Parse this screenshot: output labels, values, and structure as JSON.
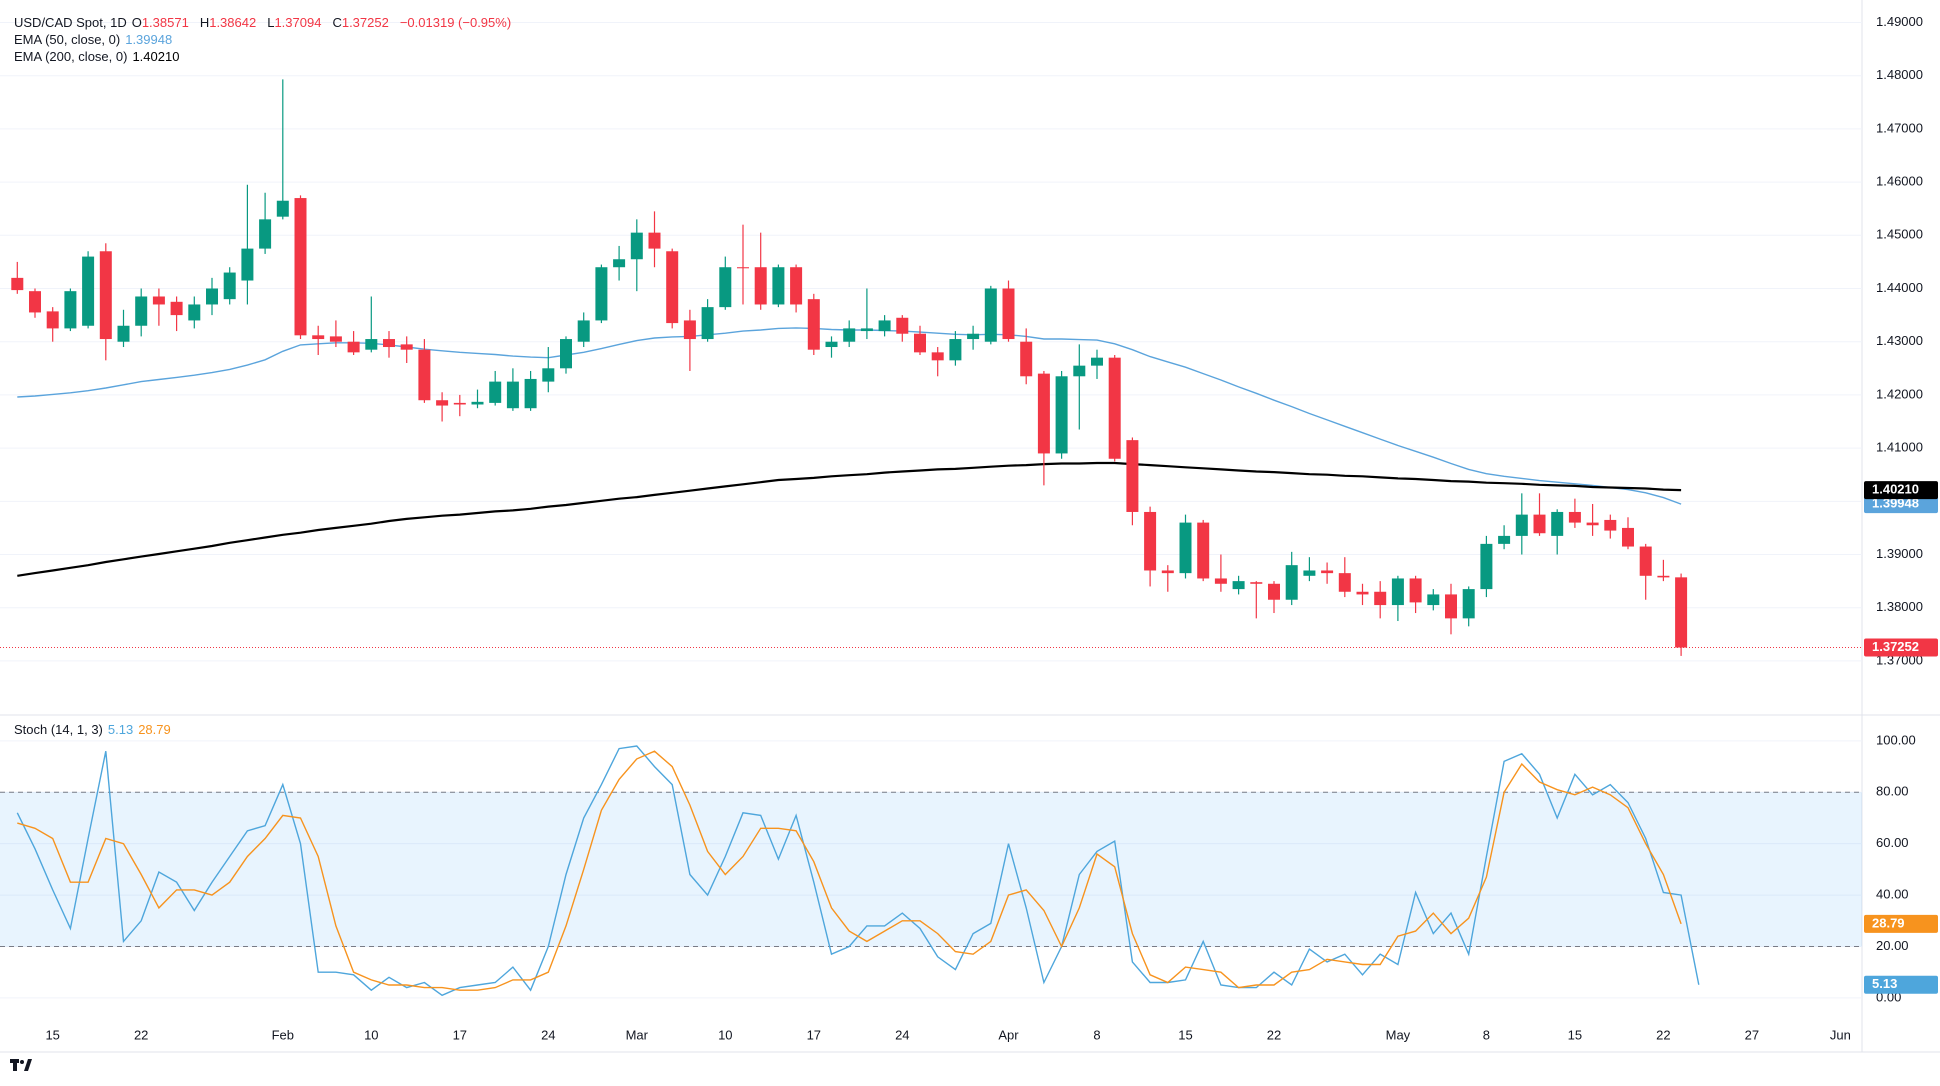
{
  "chart_data": {
    "type": "candlestick",
    "header": {
      "symbol": "USD/CAD Spot, 1D",
      "fields": [
        {
          "label": "O",
          "value": 1.38571
        },
        {
          "label": "H",
          "value": 1.38642
        },
        {
          "label": "L",
          "value": 1.37094
        },
        {
          "label": "C",
          "value": 1.37252
        }
      ],
      "change": "−0.01319 (−0.95%)"
    },
    "categories": [
      null,
      null,
      "15",
      null,
      null,
      null,
      null,
      "22",
      null,
      null,
      null,
      null,
      null,
      null,
      null,
      "Feb",
      null,
      null,
      null,
      null,
      "10",
      null,
      null,
      null,
      null,
      "17",
      null,
      null,
      null,
      null,
      "24",
      null,
      null,
      null,
      null,
      "Mar",
      null,
      null,
      null,
      null,
      "10",
      null,
      null,
      null,
      null,
      "17",
      null,
      null,
      null,
      null,
      "24",
      null,
      null,
      null,
      null,
      null,
      "Apr",
      null,
      null,
      null,
      null,
      "8",
      null,
      null,
      null,
      null,
      "15",
      null,
      null,
      null,
      null,
      "22",
      null,
      null,
      null,
      null,
      null,
      null,
      "May",
      null,
      null,
      null,
      null,
      "8",
      null,
      null,
      null,
      null,
      "15",
      null,
      null,
      null,
      null,
      "22",
      null,
      null,
      null,
      null,
      "27",
      null,
      null,
      null,
      null,
      "Jun"
    ],
    "open": [
      1.442,
      1.4395,
      1.4357,
      1.4325,
      1.433,
      1.447,
      1.43,
      1.433,
      1.4385,
      1.4375,
      1.434,
      1.437,
      1.438,
      1.4415,
      1.4475,
      1.4535,
      1.457,
      1.4312,
      1.431,
      1.43,
      1.4285,
      1.4305,
      1.4295,
      1.4285,
      1.419,
      1.4185,
      1.4182,
      1.4185,
      1.4175,
      1.4175,
      1.4225,
      1.425,
      1.43,
      1.434,
      1.444,
      1.4455,
      1.4505,
      1.447,
      1.434,
      1.4305,
      1.4365,
      1.444,
      1.444,
      1.437,
      1.444,
      1.438,
      1.429,
      1.43,
      1.432,
      1.432,
      1.4345,
      1.4315,
      1.428,
      1.4265,
      1.4305,
      1.43,
      1.44,
      1.43,
      1.424,
      1.409,
      1.4235,
      1.4255,
      1.427,
      1.4115,
      1.398,
      1.387,
      1.3865,
      1.396,
      1.3855,
      1.3835,
      1.3848,
      1.3845,
      1.3815,
      1.386,
      1.387,
      1.3865,
      1.383,
      1.383,
      1.3805,
      1.3855,
      1.3805,
      1.3825,
      1.378,
      1.3835,
      1.392,
      1.3935,
      1.3975,
      1.3935,
      1.398,
      1.396,
      1.3965,
      1.395,
      1.3915,
      1.386,
      1.38571,
      null,
      null,
      null,
      null,
      null,
      null,
      null,
      null,
      null
    ],
    "high": [
      1.445,
      1.44,
      1.4365,
      1.44,
      1.447,
      1.4485,
      1.436,
      1.44,
      1.44,
      1.4385,
      1.4385,
      1.442,
      1.444,
      1.4595,
      1.458,
      1.4793,
      1.4575,
      1.433,
      1.434,
      1.432,
      1.4385,
      1.432,
      1.431,
      1.4305,
      1.4205,
      1.42,
      1.421,
      1.4245,
      1.425,
      1.4245,
      1.429,
      1.431,
      1.4355,
      1.4445,
      1.448,
      1.453,
      1.4545,
      1.4475,
      1.436,
      1.438,
      1.446,
      1.452,
      1.4505,
      1.4445,
      1.4445,
      1.439,
      1.431,
      1.434,
      1.44,
      1.435,
      1.435,
      1.433,
      1.429,
      1.432,
      1.433,
      1.4405,
      1.4415,
      1.4325,
      1.4245,
      1.4245,
      1.4295,
      1.4285,
      1.4275,
      1.412,
      1.399,
      1.388,
      1.3975,
      1.3965,
      1.39,
      1.386,
      1.385,
      1.385,
      1.3905,
      1.3895,
      1.3885,
      1.3895,
      1.3845,
      1.385,
      1.386,
      1.386,
      1.3835,
      1.3845,
      1.384,
      1.3935,
      1.3955,
      1.4015,
      1.4015,
      1.3985,
      1.4005,
      1.3995,
      1.3975,
      1.397,
      1.392,
      1.389,
      1.38642,
      null,
      null,
      null,
      null,
      null,
      null,
      null,
      null,
      null
    ],
    "low": [
      1.439,
      1.4345,
      1.43,
      1.432,
      1.4325,
      1.4265,
      1.429,
      1.431,
      1.433,
      1.432,
      1.4325,
      1.435,
      1.437,
      1.437,
      1.4465,
      1.453,
      1.4305,
      1.4275,
      1.429,
      1.4275,
      1.428,
      1.427,
      1.426,
      1.4185,
      1.415,
      1.416,
      1.4175,
      1.418,
      1.417,
      1.417,
      1.4205,
      1.424,
      1.429,
      1.4335,
      1.4415,
      1.4395,
      1.444,
      1.4325,
      1.4245,
      1.43,
      1.436,
      1.437,
      1.436,
      1.4365,
      1.4355,
      1.4275,
      1.427,
      1.429,
      1.4305,
      1.431,
      1.43,
      1.4275,
      1.4235,
      1.4255,
      1.4285,
      1.4295,
      1.43,
      1.422,
      1.403,
      1.408,
      1.4135,
      1.423,
      1.4075,
      1.3955,
      1.384,
      1.383,
      1.3855,
      1.385,
      1.383,
      1.3825,
      1.378,
      1.379,
      1.3805,
      1.385,
      1.3845,
      1.382,
      1.3805,
      1.378,
      1.3775,
      1.379,
      1.3795,
      1.375,
      1.3765,
      1.382,
      1.391,
      1.39,
      1.3935,
      1.39,
      1.395,
      1.3935,
      1.393,
      1.391,
      1.3815,
      1.385,
      1.37094,
      null,
      null,
      null,
      null,
      null,
      null,
      null,
      null,
      null
    ],
    "close": [
      1.4397,
      1.4355,
      1.4325,
      1.4395,
      1.446,
      1.4305,
      1.433,
      1.4385,
      1.437,
      1.435,
      1.437,
      1.44,
      1.443,
      1.4475,
      1.453,
      1.4565,
      1.4312,
      1.4305,
      1.43,
      1.428,
      1.4305,
      1.429,
      1.4285,
      1.419,
      1.418,
      1.4182,
      1.4187,
      1.4225,
      1.4225,
      1.423,
      1.425,
      1.4305,
      1.434,
      1.444,
      1.4455,
      1.4505,
      1.4475,
      1.4335,
      1.4305,
      1.4365,
      1.444,
      1.4438,
      1.437,
      1.444,
      1.437,
      1.4285,
      1.43,
      1.4325,
      1.4325,
      1.434,
      1.4315,
      1.428,
      1.4265,
      1.4305,
      1.4315,
      1.44,
      1.4305,
      1.4235,
      1.409,
      1.4235,
      1.4255,
      1.427,
      1.408,
      1.398,
      1.387,
      1.3865,
      1.396,
      1.3855,
      1.3845,
      1.385,
      1.3845,
      1.3815,
      1.388,
      1.387,
      1.3865,
      1.383,
      1.3825,
      1.3805,
      1.3855,
      1.381,
      1.3825,
      1.378,
      1.3835,
      1.392,
      1.3935,
      1.3975,
      1.394,
      1.398,
      1.396,
      1.3955,
      1.3945,
      1.3915,
      1.386,
      1.3857,
      1.37252,
      null,
      null,
      null,
      null,
      null,
      null,
      null,
      null,
      null
    ],
    "up_color": "#089981",
    "down_color": "#f23645",
    "overlays": [
      {
        "name": "EMA (50, close, 0)",
        "color": "#5ba4dc",
        "last_label": "1.39948",
        "values": [
          1.4196,
          1.4198,
          1.4201,
          1.4204,
          1.4208,
          1.4213,
          1.4219,
          1.4225,
          1.4229,
          1.4233,
          1.4237,
          1.4242,
          1.4248,
          1.4256,
          1.4266,
          1.4282,
          1.4294,
          1.4296,
          1.4298,
          1.4298,
          1.4297,
          1.4294,
          1.429,
          1.4286,
          1.4283,
          1.428,
          1.4278,
          1.4276,
          1.4273,
          1.4271,
          1.427,
          1.4275,
          1.428,
          1.4287,
          1.4295,
          1.4302,
          1.4307,
          1.4309,
          1.431,
          1.4313,
          1.4316,
          1.432,
          1.4322,
          1.4325,
          1.4326,
          1.4325,
          1.4323,
          1.4322,
          1.4322,
          1.4321,
          1.432,
          1.4318,
          1.4316,
          1.4314,
          1.4313,
          1.4314,
          1.4313,
          1.431,
          1.4305,
          1.4305,
          1.4304,
          1.4303,
          1.4296,
          1.4285,
          1.4272,
          1.4262,
          1.4252,
          1.424,
          1.4228,
          1.4215,
          1.4203,
          1.419,
          1.4178,
          1.4165,
          1.4153,
          1.4141,
          1.4129,
          1.4117,
          1.4105,
          1.4094,
          1.4083,
          1.4071,
          1.406,
          1.4052,
          1.4047,
          1.4043,
          1.4039,
          1.4036,
          1.4033,
          1.403,
          1.4026,
          1.4022,
          1.4016,
          1.4007,
          1.39948,
          null,
          null,
          null,
          null,
          null,
          null,
          null,
          null,
          null
        ]
      },
      {
        "name": "EMA (200, close, 0)",
        "color": "#000000",
        "last_label": "1.40210",
        "values": [
          1.386,
          1.3865,
          1.387,
          1.3875,
          1.388,
          1.3886,
          1.3891,
          1.3896,
          1.3901,
          1.3906,
          1.3911,
          1.3916,
          1.3922,
          1.3927,
          1.3932,
          1.3937,
          1.3941,
          1.3946,
          1.395,
          1.3954,
          1.3958,
          1.3963,
          1.3967,
          1.397,
          1.3973,
          1.3975,
          1.3978,
          1.3981,
          1.3983,
          1.3986,
          1.399,
          1.3993,
          1.3997,
          1.4001,
          1.4005,
          1.4008,
          1.4012,
          1.4016,
          1.402,
          1.4024,
          1.4028,
          1.4032,
          1.4036,
          1.404,
          1.4042,
          1.4044,
          1.4047,
          1.4049,
          1.4051,
          1.4054,
          1.4056,
          1.4058,
          1.406,
          1.4061,
          1.4063,
          1.4065,
          1.4067,
          1.4068,
          1.407,
          1.4071,
          1.4071,
          1.4072,
          1.4072,
          1.407,
          1.4068,
          1.4066,
          1.4064,
          1.4062,
          1.406,
          1.4058,
          1.4056,
          1.4055,
          1.4053,
          1.4051,
          1.405,
          1.4048,
          1.4047,
          1.4045,
          1.4043,
          1.4042,
          1.404,
          1.4038,
          1.4037,
          1.4035,
          1.4034,
          1.4033,
          1.4031,
          1.403,
          1.4029,
          1.4027,
          1.4026,
          1.4025,
          1.4024,
          1.4022,
          1.4021,
          null,
          null,
          null,
          null,
          null,
          null,
          null,
          null,
          null
        ]
      }
    ],
    "ylim": [
      1.3604,
      1.4931
    ],
    "yticks": [
      {
        "value": 1.37,
        "label": "1.37000"
      },
      {
        "value": 1.38,
        "label": "1.38000"
      },
      {
        "value": 1.39,
        "label": "1.39000"
      },
      {
        "value": 1.4,
        "label": "1.40000"
      },
      {
        "value": 1.41,
        "label": "1.41000"
      },
      {
        "value": 1.42,
        "label": "1.42000"
      },
      {
        "value": 1.43,
        "label": "1.43000"
      },
      {
        "value": 1.44,
        "label": "1.44000"
      },
      {
        "value": 1.45,
        "label": "1.45000"
      },
      {
        "value": 1.46,
        "label": "1.46000"
      },
      {
        "value": 1.47,
        "label": "1.47000"
      },
      {
        "value": 1.48,
        "label": "1.48000"
      },
      {
        "value": 1.49,
        "label": "1.49000"
      }
    ],
    "grid": true,
    "stoch": {
      "name": "Stoch (14, 1, 3)",
      "ylim": [
        -8.6,
        108.9
      ],
      "yticks": [
        {
          "value": 0,
          "label": "0.00"
        },
        {
          "value": 20,
          "label": "20.00"
        },
        {
          "value": 40,
          "label": "40.00"
        },
        {
          "value": 60,
          "label": "60.00"
        },
        {
          "value": 80,
          "label": "80.00"
        },
        {
          "value": 100,
          "label": "100.00"
        }
      ],
      "bands": [
        20,
        80
      ],
      "band_color": "#2196f3",
      "series": [
        {
          "color": "#4ea6dc",
          "values": [
            72,
            58,
            42,
            27,
            62,
            96,
            22,
            30,
            49,
            45,
            34,
            45,
            55,
            65,
            67,
            83,
            60,
            10,
            10,
            9,
            3,
            8,
            4,
            6,
            1,
            4,
            5,
            6,
            12,
            3,
            20,
            48,
            70,
            83,
            97,
            98,
            90,
            83,
            48,
            40,
            55,
            72,
            71,
            54,
            71,
            45,
            17,
            20,
            28,
            28,
            33,
            27,
            16,
            11,
            25,
            29,
            60,
            35,
            6,
            20,
            48,
            57,
            61,
            14,
            6,
            6,
            7,
            22,
            5,
            4,
            4,
            10,
            5,
            19,
            14,
            17,
            9,
            17,
            13,
            41,
            25,
            33,
            17,
            55,
            92,
            95,
            87,
            70,
            87,
            79,
            83,
            76,
            62,
            41,
            40,
            5.13,
            null,
            null,
            null,
            null,
            null,
            null,
            null,
            null,
            null
          ]
        },
        {
          "color": "#f7931e",
          "values": [
            68,
            66,
            62,
            45,
            45,
            62,
            60,
            48,
            35,
            42,
            42,
            40,
            45,
            55,
            62,
            71,
            70,
            55,
            28,
            10,
            7,
            5,
            5,
            4,
            4,
            3,
            3,
            4,
            7,
            7,
            10,
            28,
            50,
            73,
            85,
            93,
            96,
            90,
            75,
            57,
            48,
            55,
            66,
            66,
            65,
            53,
            35,
            26,
            22,
            26,
            30,
            30,
            25,
            18,
            17,
            22,
            40,
            42,
            34,
            20,
            35,
            56,
            51,
            25,
            9,
            6,
            12,
            11,
            10,
            4,
            5,
            5,
            10,
            11,
            15,
            14,
            13,
            13,
            24,
            26,
            33,
            25,
            31,
            47,
            80,
            91,
            84,
            81,
            79,
            82,
            79,
            74,
            60,
            48,
            28.79,
            null,
            null,
            null,
            null,
            null,
            null,
            null,
            null,
            null
          ]
        }
      ]
    },
    "branding": "TradingView"
  }
}
